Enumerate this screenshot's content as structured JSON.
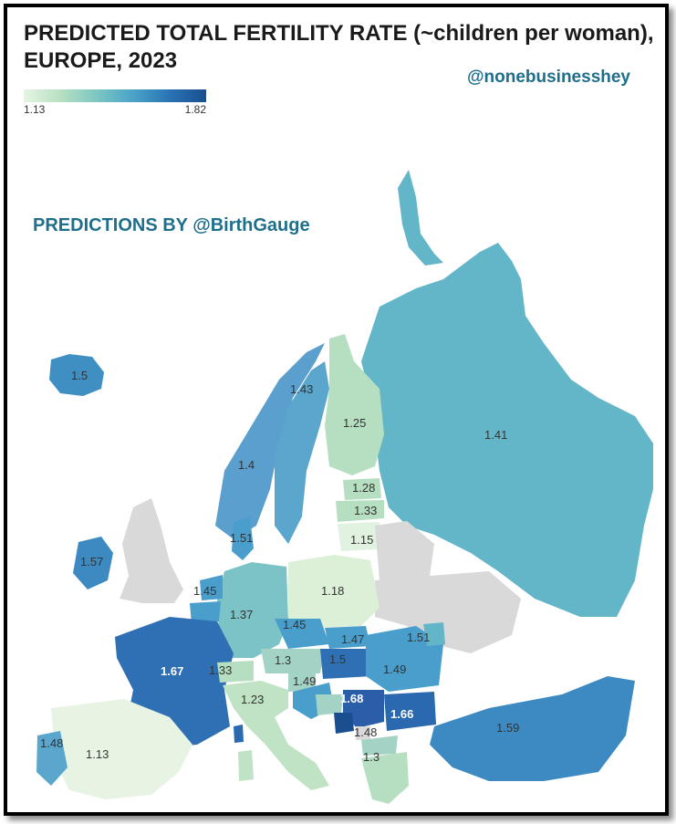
{
  "title_line1": "PREDICTED TOTAL FERTILITY RATE (~children per woman),",
  "title_line2": "EUROPE, 2023",
  "credit": "@nonebusinesshey",
  "predictions_by": "PREDICTIONS BY @BirthGauge",
  "legend": {
    "min": "1.13",
    "max": "1.82"
  },
  "colors": {
    "no_data": "#d9d9d9",
    "scale": [
      "#e6f4e4",
      "#b8e0c2",
      "#7cc6c2",
      "#4aa3c8",
      "#2a73b5",
      "#1a4f8f"
    ]
  },
  "map_data": {
    "values": [
      {
        "value": "1.5"
      },
      {
        "value": "1.43"
      },
      {
        "value": "1.25"
      },
      {
        "value": "1.41"
      },
      {
        "value": "1.4"
      },
      {
        "value": "1.28"
      },
      {
        "value": "1.33"
      },
      {
        "value": "1.51"
      },
      {
        "value": "1.15"
      },
      {
        "value": "1.57"
      },
      {
        "value": "1.18"
      },
      {
        "value": "1.45"
      },
      {
        "value": "1.37"
      },
      {
        "value": "1.45"
      },
      {
        "value": "1.47"
      },
      {
        "value": "1.51"
      },
      {
        "value": "1.67"
      },
      {
        "value": "1.3"
      },
      {
        "value": "1.5"
      },
      {
        "value": "1.49"
      },
      {
        "value": "1.33"
      },
      {
        "value": "1.49"
      },
      {
        "value": "1.68"
      },
      {
        "value": "1.23"
      },
      {
        "value": "1.66"
      },
      {
        "value": "1.59"
      },
      {
        "value": "1.48"
      },
      {
        "value": "1.48"
      },
      {
        "value": "1.13"
      },
      {
        "value": "1.3"
      }
    ]
  }
}
